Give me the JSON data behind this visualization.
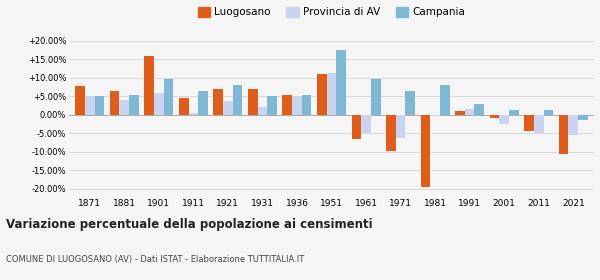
{
  "years": [
    1871,
    1881,
    1901,
    1911,
    1921,
    1931,
    1936,
    1951,
    1961,
    1971,
    1981,
    1991,
    2001,
    2011,
    2021
  ],
  "luogosano": [
    7.8,
    6.5,
    15.8,
    4.5,
    7.0,
    7.0,
    5.5,
    11.0,
    -6.5,
    -9.8,
    -19.5,
    1.0,
    -1.0,
    -4.5,
    -10.5
  ],
  "provincia_av": [
    5.0,
    4.0,
    5.8,
    0.5,
    3.8,
    2.0,
    5.2,
    11.2,
    -4.8,
    -6.3,
    -0.2,
    1.5,
    -2.5,
    -5.0,
    -5.5
  ],
  "campania": [
    5.2,
    5.5,
    9.8,
    6.5,
    8.0,
    5.2,
    5.5,
    17.5,
    9.8,
    6.5,
    8.0,
    3.0,
    1.2,
    1.2,
    -1.5
  ],
  "color_luogosano": "#e05c1a",
  "color_provincia": "#c8d4f0",
  "color_campania": "#7eb8d4",
  "title": "Variazione percentuale della popolazione ai censimenti",
  "subtitle": "COMUNE DI LUOGOSANO (AV) - Dati ISTAT - Elaborazione TUTTITALIA.IT",
  "ylim": [
    -22,
    22
  ],
  "yticks": [
    -20,
    -15,
    -10,
    -5,
    0,
    5,
    10,
    15,
    20
  ],
  "background_color": "#f5f5f5",
  "grid_color": "#d8d8d8"
}
